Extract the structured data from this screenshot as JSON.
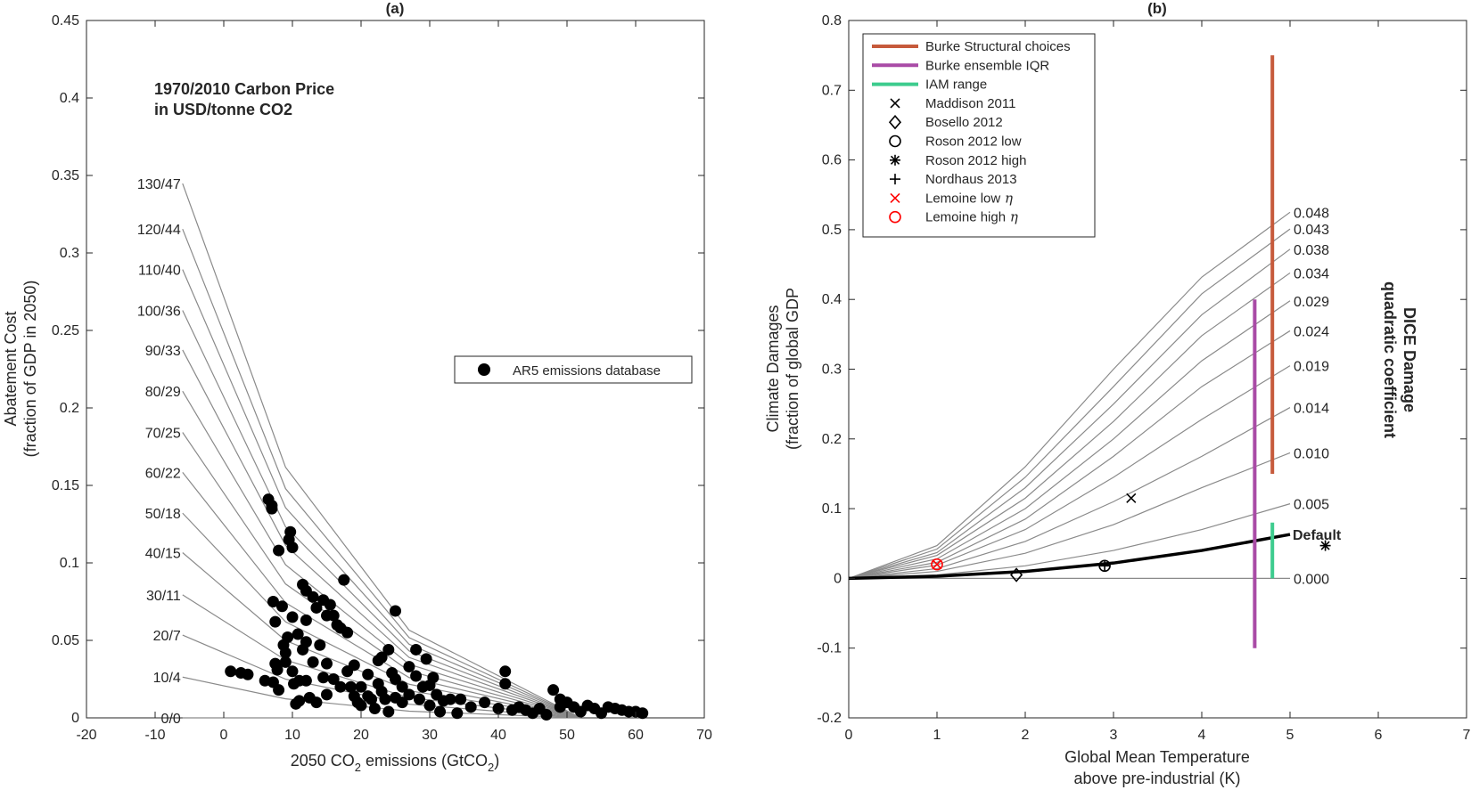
{
  "figure": {
    "panel_a_title": "(a)",
    "panel_b_title": "(b)"
  },
  "chart_data": [
    {
      "type": "scatter",
      "title": "(a)",
      "xlabel_main": "2050 CO",
      "xlabel_sub1": "2",
      "xlabel_mid": " emissions (GtCO",
      "xlabel_sub2": "2",
      "xlabel_end": ")",
      "ylabel_line1": "Abatement Cost",
      "ylabel_line2": "(fraction of GDP in 2050)",
      "xlim": [
        -20,
        70
      ],
      "ylim": [
        0,
        0.45
      ],
      "xticks": [
        -20,
        -10,
        0,
        10,
        20,
        30,
        40,
        50,
        60,
        70
      ],
      "yticks": [
        0,
        0.05,
        0.1,
        0.15,
        0.2,
        0.25,
        0.3,
        0.35,
        0.4,
        0.45
      ],
      "annotation_line1": "1970/2010 Carbon Price",
      "annotation_line2": "in USD/tonne CO2",
      "legend": [
        "AR5 emissions database"
      ],
      "price_curves": {
        "labels": [
          "0/0",
          "10/4",
          "20/7",
          "30/11",
          "40/15",
          "50/18",
          "60/22",
          "70/25",
          "80/29",
          "90/33",
          "100/36",
          "110/40",
          "120/44",
          "130/47"
        ],
        "start_x": -6,
        "start_y": [
          0,
          0.0263,
          0.0534,
          0.0794,
          0.1066,
          0.1321,
          0.1584,
          0.1842,
          0.2108,
          0.2374,
          0.2629,
          0.2893,
          0.3154,
          0.3448
        ],
        "knee_x": 9,
        "knee_y": [
          0,
          0.0123,
          0.025,
          0.0373,
          0.0499,
          0.062,
          0.0743,
          0.0864,
          0.0988,
          0.1113,
          0.1233,
          0.1356,
          0.1479,
          0.1617
        ],
        "mid_x": 27,
        "mid_y": [
          0,
          0.0043,
          0.0088,
          0.0131,
          0.0175,
          0.0217,
          0.026,
          0.0303,
          0.0346,
          0.039,
          0.0432,
          0.0475,
          0.0518,
          0.0566
        ],
        "end_x": 52,
        "end_y": 0
      },
      "scatter_points": [
        [
          1,
          0.03
        ],
        [
          2.5,
          0.029
        ],
        [
          3.5,
          0.028
        ],
        [
          6,
          0.024
        ],
        [
          6.5,
          0.141
        ],
        [
          7,
          0.137
        ],
        [
          7,
          0.135
        ],
        [
          7.2,
          0.075
        ],
        [
          7.5,
          0.062
        ],
        [
          7.5,
          0.035
        ],
        [
          7.8,
          0.031
        ],
        [
          7.2,
          0.023
        ],
        [
          8,
          0.108
        ],
        [
          8,
          0.018
        ],
        [
          8.5,
          0.072
        ],
        [
          8.7,
          0.047
        ],
        [
          9,
          0.042
        ],
        [
          9,
          0.036
        ],
        [
          9.3,
          0.052
        ],
        [
          9.5,
          0.115
        ],
        [
          9.7,
          0.12
        ],
        [
          10,
          0.11
        ],
        [
          10,
          0.065
        ],
        [
          10,
          0.03
        ],
        [
          10.2,
          0.022
        ],
        [
          10.5,
          0.009
        ],
        [
          10.8,
          0.054
        ],
        [
          11,
          0.024
        ],
        [
          11,
          0.011
        ],
        [
          11.5,
          0.086
        ],
        [
          11.5,
          0.044
        ],
        [
          12,
          0.082
        ],
        [
          12,
          0.063
        ],
        [
          12,
          0.049
        ],
        [
          12,
          0.024
        ],
        [
          12.5,
          0.013
        ],
        [
          13,
          0.078
        ],
        [
          13,
          0.036
        ],
        [
          13.5,
          0.071
        ],
        [
          13.5,
          0.01
        ],
        [
          14,
          0.047
        ],
        [
          14.5,
          0.076
        ],
        [
          14.5,
          0.026
        ],
        [
          15,
          0.066
        ],
        [
          15,
          0.035
        ],
        [
          15,
          0.015
        ],
        [
          15.5,
          0.073
        ],
        [
          16,
          0.066
        ],
        [
          16,
          0.025
        ],
        [
          16.5,
          0.06
        ],
        [
          17,
          0.058
        ],
        [
          17,
          0.02
        ],
        [
          17.5,
          0.089
        ],
        [
          18,
          0.055
        ],
        [
          18,
          0.03
        ],
        [
          18.5,
          0.02
        ],
        [
          19,
          0.034
        ],
        [
          19,
          0.014
        ],
        [
          19.5,
          0.01
        ],
        [
          20,
          0.02
        ],
        [
          20,
          0.008
        ],
        [
          21,
          0.028
        ],
        [
          21,
          0.014
        ],
        [
          21.5,
          0.012
        ],
        [
          22,
          0.006
        ],
        [
          22.5,
          0.022
        ],
        [
          22.5,
          0.037
        ],
        [
          23,
          0.039
        ],
        [
          23,
          0.017
        ],
        [
          23.5,
          0.012
        ],
        [
          24,
          0.004
        ],
        [
          24,
          0.044
        ],
        [
          24.5,
          0.029
        ],
        [
          25,
          0.069
        ],
        [
          25,
          0.025
        ],
        [
          25,
          0.013
        ],
        [
          26,
          0.02
        ],
        [
          26,
          0.01
        ],
        [
          27,
          0.033
        ],
        [
          27,
          0.015
        ],
        [
          28,
          0.044
        ],
        [
          28,
          0.027
        ],
        [
          28.5,
          0.012
        ],
        [
          29,
          0.02
        ],
        [
          29.5,
          0.038
        ],
        [
          30,
          0.021
        ],
        [
          30.5,
          0.026
        ],
        [
          30,
          0.008
        ],
        [
          31,
          0.015
        ],
        [
          31.5,
          0.004
        ],
        [
          32,
          0.011
        ],
        [
          33,
          0.012
        ],
        [
          34,
          0.003
        ],
        [
          34.5,
          0.012
        ],
        [
          36,
          0.007
        ],
        [
          38,
          0.01
        ],
        [
          40,
          0.006
        ],
        [
          41,
          0.03
        ],
        [
          41,
          0.022
        ],
        [
          42,
          0.005
        ],
        [
          43,
          0.007
        ],
        [
          44,
          0.005
        ],
        [
          45,
          0.003
        ],
        [
          46,
          0.006
        ],
        [
          47,
          0.002
        ],
        [
          48,
          0.018
        ],
        [
          49,
          0.012
        ],
        [
          49,
          0.007
        ],
        [
          50,
          0.01
        ],
        [
          51,
          0.007
        ],
        [
          52,
          0.004
        ],
        [
          53,
          0.008
        ],
        [
          54,
          0.006
        ],
        [
          55,
          0.003
        ],
        [
          56,
          0.007
        ],
        [
          57,
          0.006
        ],
        [
          58,
          0.005
        ],
        [
          59,
          0.004
        ],
        [
          60,
          0.004
        ],
        [
          61,
          0.003
        ]
      ]
    },
    {
      "type": "line",
      "title": "(b)",
      "xlabel_line1": "Global Mean Temperature",
      "xlabel_line2": "above pre-industrial (K)",
      "ylabel_line1": "Climate Damages",
      "ylabel_line2": "(fraction of global GDP",
      "xlim": [
        0,
        7
      ],
      "ylim": [
        -0.2,
        0.8
      ],
      "xticks": [
        0,
        1,
        2,
        3,
        4,
        5,
        6,
        7
      ],
      "yticks": [
        -0.2,
        -0.1,
        0,
        0.1,
        0.2,
        0.3,
        0.4,
        0.5,
        0.6,
        0.7,
        0.8
      ],
      "side_label_line1": "DICE Damage",
      "side_label_line2": "quadratic coefficient",
      "default_label": "Default",
      "curves": {
        "x": [
          0,
          1,
          2,
          3,
          4,
          5
        ],
        "series": [
          {
            "name": "0.048",
            "values": [
              0,
              0.047,
              0.16,
              0.3,
              0.432,
              0.525
            ]
          },
          {
            "name": "0.043",
            "values": [
              0,
              0.042,
              0.145,
              0.275,
              0.408,
              0.501
            ]
          },
          {
            "name": "0.038",
            "values": [
              0,
              0.037,
              0.13,
              0.25,
              0.378,
              0.472
            ]
          },
          {
            "name": "0.034",
            "values": [
              0,
              0.033,
              0.115,
              0.225,
              0.348,
              0.438
            ]
          },
          {
            "name": "0.029",
            "values": [
              0,
              0.028,
              0.1,
              0.2,
              0.312,
              0.398
            ]
          },
          {
            "name": "0.024",
            "values": [
              0,
              0.023,
              0.085,
              0.175,
              0.275,
              0.355
            ]
          },
          {
            "name": "0.019",
            "values": [
              0,
              0.019,
              0.07,
              0.145,
              0.228,
              0.305
            ]
          },
          {
            "name": "0.014",
            "values": [
              0,
              0.014,
              0.053,
              0.11,
              0.175,
              0.245
            ]
          },
          {
            "name": "0.010",
            "values": [
              0,
              0.01,
              0.036,
              0.077,
              0.13,
              0.18
            ]
          },
          {
            "name": "0.005",
            "values": [
              0,
              0.005,
              0.018,
              0.04,
              0.07,
              0.107
            ]
          },
          {
            "name": "0.000",
            "values": [
              0,
              0,
              0,
              0,
              0,
              0
            ]
          }
        ],
        "default_values": [
          0,
          0.003,
          0.01,
          0.022,
          0.04,
          0.063
        ]
      },
      "ranges": [
        {
          "name": "Burke Structural choices",
          "x": 4.8,
          "y": [
            0.15,
            0.75
          ],
          "color": "#c65a3b"
        },
        {
          "name": "Burke ensemble IQR",
          "x": 4.6,
          "y": [
            -0.1,
            0.4
          ],
          "color": "#a94ba6"
        },
        {
          "name": "IAM range",
          "x": 4.8,
          "y": [
            0,
            0.08
          ],
          "color": "#3dcc8e"
        }
      ],
      "points": [
        {
          "name": "Maddison 2011",
          "x": 3.2,
          "y": 0.115,
          "marker": "x",
          "color": "#000000"
        },
        {
          "name": "Bosello 2012",
          "x": 1.9,
          "y": 0.005,
          "marker": "diamond",
          "color": "#000000"
        },
        {
          "name": "Roson 2012 low",
          "x": 2.9,
          "y": 0.018,
          "marker": "circle",
          "color": "#000000"
        },
        {
          "name": "Roson 2012 high",
          "x": 5.4,
          "y": 0.047,
          "marker": "star",
          "color": "#000000"
        },
        {
          "name": "Nordhaus 2013",
          "x": 2.9,
          "y": 0.018,
          "marker": "plus",
          "color": "#000000"
        },
        {
          "name": "Lemoine low η",
          "x": 1.0,
          "y": 0.02,
          "marker": "x",
          "color": "#ff0000"
        },
        {
          "name": "Lemoine high η",
          "x": 1.0,
          "y": 0.02,
          "marker": "circle",
          "color": "#ff0000"
        }
      ],
      "legend": [
        {
          "label": "Burke Structural choices",
          "kind": "line",
          "color": "#c65a3b"
        },
        {
          "label": "Burke ensemble IQR",
          "kind": "line",
          "color": "#a94ba6"
        },
        {
          "label": "IAM range",
          "kind": "line",
          "color": "#3dcc8e"
        },
        {
          "label": "Maddison 2011",
          "kind": "x",
          "color": "#000000"
        },
        {
          "label": "Bosello 2012",
          "kind": "diamond",
          "color": "#000000"
        },
        {
          "label": "Roson 2012 low",
          "kind": "circle",
          "color": "#000000"
        },
        {
          "label": "Roson 2012 high",
          "kind": "star",
          "color": "#000000"
        },
        {
          "label": "Nordhaus 2013",
          "kind": "plus",
          "color": "#000000"
        },
        {
          "label": "Lemoine low",
          "eta": "η",
          "kind": "x",
          "color": "#ff0000"
        },
        {
          "label": "Lemoine high",
          "eta": "η",
          "kind": "circle",
          "color": "#ff0000"
        }
      ]
    }
  ]
}
